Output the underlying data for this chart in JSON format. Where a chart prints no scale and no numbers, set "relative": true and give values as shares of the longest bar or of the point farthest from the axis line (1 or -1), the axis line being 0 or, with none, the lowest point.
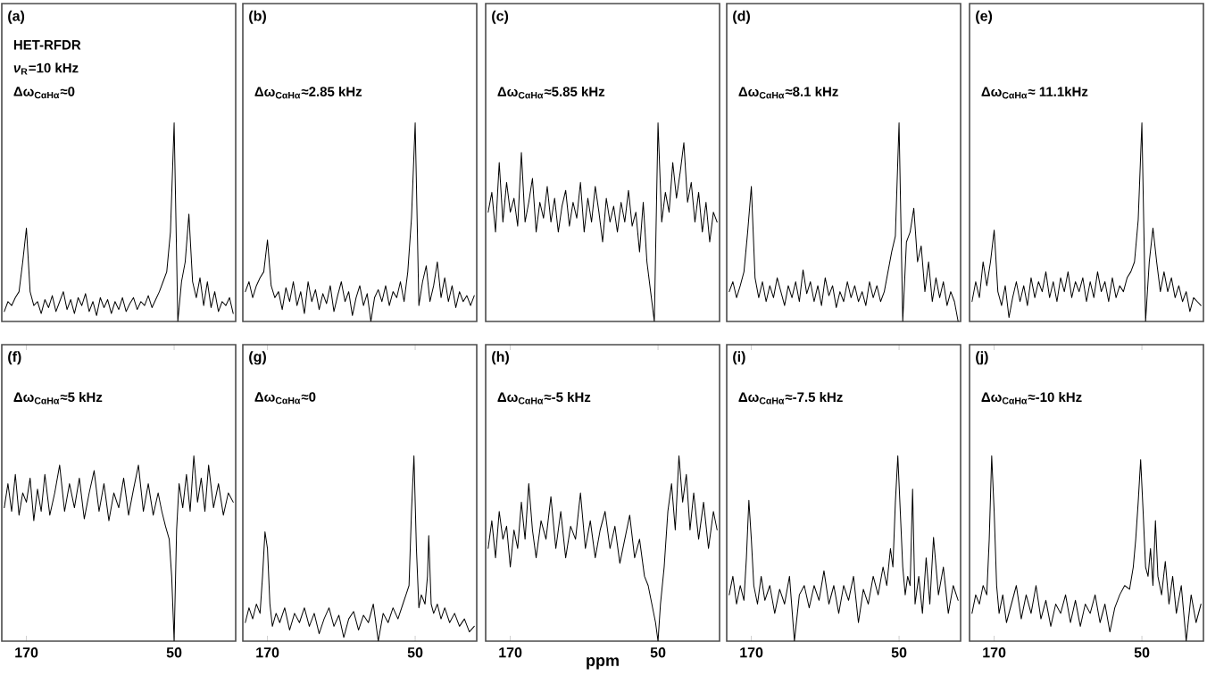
{
  "chart_data": [
    {
      "type": "line",
      "title": "(a)",
      "annotations": [
        "HET-RFDR",
        "*ν*$_{R}$=10 kHz",
        "Δω$_{CαHα}$≈0"
      ],
      "tick_labels": false,
      "relative": true,
      "color": "#000000",
      "categories": [
        null,
        null,
        null,
        null,
        null,
        null,
        null,
        null,
        null,
        null,
        null,
        null,
        null,
        null,
        null,
        null,
        null,
        null,
        null,
        null,
        null,
        null,
        null,
        null,
        null,
        null,
        null,
        null,
        null,
        null,
        null,
        null,
        null,
        null,
        null,
        null,
        null,
        null,
        null,
        null,
        null,
        null,
        null,
        null,
        null,
        null,
        null,
        null,
        null,
        null,
        null,
        null,
        null,
        null,
        null,
        null,
        null,
        null,
        null,
        null,
        null,
        null,
        null
      ],
      "values": [
        0.05,
        0.1,
        0.08,
        0.12,
        0.15,
        0.3,
        0.47,
        0.15,
        0.08,
        0.1,
        0.04,
        0.11,
        0.07,
        0.13,
        0.05,
        0.1,
        0.15,
        0.06,
        0.11,
        0.04,
        0.12,
        0.08,
        0.14,
        0.05,
        0.1,
        0.03,
        0.12,
        0.07,
        0.11,
        0.04,
        0.1,
        0.06,
        0.12,
        0.05,
        0.09,
        0.12,
        0.06,
        0.1,
        0.08,
        0.13,
        0.07,
        0.11,
        0.15,
        0.2,
        0.25,
        0.45,
        1,
        0,
        0.2,
        0.3,
        0.54,
        0.2,
        0.12,
        0.22,
        0.08,
        0.2,
        0.07,
        0.15,
        0.05,
        0.1,
        0.08,
        0.12,
        0.04
      ]
    },
    {
      "type": "line",
      "title": "(b)",
      "annotations": [
        "Δω$_{CαHα}$≈2.85 kHz"
      ],
      "tick_labels": false,
      "relative": true,
      "color": "#000000",
      "categories": [
        null,
        null,
        null,
        null,
        null,
        null,
        null,
        null,
        null,
        null,
        null,
        null,
        null,
        null,
        null,
        null,
        null,
        null,
        null,
        null,
        null,
        null,
        null,
        null,
        null,
        null,
        null,
        null,
        null,
        null,
        null,
        null,
        null,
        null,
        null,
        null,
        null,
        null,
        null,
        null,
        null,
        null,
        null,
        null,
        null,
        null,
        null,
        null,
        null,
        null,
        null,
        null,
        null,
        null,
        null,
        null,
        null,
        null,
        null,
        null,
        null,
        null,
        null
      ],
      "values": [
        0.15,
        0.2,
        0.12,
        0.18,
        0.22,
        0.25,
        0.41,
        0.18,
        0.12,
        0.15,
        0.06,
        0.17,
        0.1,
        0.2,
        0.08,
        0.15,
        0.04,
        0.2,
        0.1,
        0.16,
        0.06,
        0.14,
        0.09,
        0.18,
        0.05,
        0.13,
        0.2,
        0.1,
        0.15,
        0.03,
        0.12,
        0.18,
        0.08,
        0.14,
        0,
        0.12,
        0.16,
        0.1,
        0.18,
        0.08,
        0.15,
        0.12,
        0.2,
        0.1,
        0.25,
        0.52,
        1,
        0.08,
        0.2,
        0.28,
        0.1,
        0.18,
        0.3,
        0.12,
        0.22,
        0.1,
        0.18,
        0.07,
        0.15,
        0.1,
        0.13,
        0.08,
        0.13
      ]
    },
    {
      "type": "line",
      "title": "(c)",
      "annotations": [
        "Δω$_{CαHα}$≈5.85 kHz"
      ],
      "tick_labels": false,
      "relative": true,
      "color": "#000000",
      "categories": [
        null,
        null,
        null,
        null,
        null,
        null,
        null,
        null,
        null,
        null,
        null,
        null,
        null,
        null,
        null,
        null,
        null,
        null,
        null,
        null,
        null,
        null,
        null,
        null,
        null,
        null,
        null,
        null,
        null,
        null,
        null,
        null,
        null,
        null,
        null,
        null,
        null,
        null,
        null,
        null,
        null,
        null,
        null,
        null,
        null,
        null,
        null,
        null,
        null,
        null,
        null,
        null,
        null,
        null,
        null,
        null,
        null,
        null,
        null,
        null,
        null,
        null,
        null
      ],
      "values": [
        0.55,
        0.65,
        0.45,
        0.8,
        0.5,
        0.7,
        0.55,
        0.62,
        0.48,
        0.85,
        0.5,
        0.6,
        0.72,
        0.45,
        0.6,
        0.52,
        0.68,
        0.5,
        0.62,
        0.45,
        0.58,
        0.66,
        0.48,
        0.6,
        0.52,
        0.7,
        0.45,
        0.62,
        0.5,
        0.68,
        0.55,
        0.4,
        0.62,
        0.5,
        0.58,
        0.45,
        0.6,
        0.5,
        0.66,
        0.48,
        0.55,
        0.35,
        0.6,
        0.3,
        0.15,
        0,
        1,
        0.5,
        0.65,
        0.55,
        0.8,
        0.62,
        0.75,
        0.9,
        0.6,
        0.7,
        0.5,
        0.65,
        0.45,
        0.6,
        0.4,
        0.55,
        0.5
      ]
    },
    {
      "type": "line",
      "title": "(d)",
      "annotations": [
        "Δω$_{CαHα}$≈8.1 kHz"
      ],
      "tick_labels": false,
      "relative": true,
      "color": "#000000",
      "categories": [
        null,
        null,
        null,
        null,
        null,
        null,
        null,
        null,
        null,
        null,
        null,
        null,
        null,
        null,
        null,
        null,
        null,
        null,
        null,
        null,
        null,
        null,
        null,
        null,
        null,
        null,
        null,
        null,
        null,
        null,
        null,
        null,
        null,
        null,
        null,
        null,
        null,
        null,
        null,
        null,
        null,
        null,
        null,
        null,
        null,
        null,
        null,
        null,
        null,
        null,
        null,
        null,
        null,
        null,
        null,
        null,
        null,
        null,
        null,
        null,
        null,
        null,
        null
      ],
      "values": [
        0.15,
        0.2,
        0.12,
        0.18,
        0.25,
        0.45,
        0.68,
        0.22,
        0.12,
        0.2,
        0.1,
        0.18,
        0.12,
        0.22,
        0.15,
        0.08,
        0.18,
        0.12,
        0.2,
        0.1,
        0.26,
        0.14,
        0.2,
        0.1,
        0.18,
        0.08,
        0.22,
        0.13,
        0.18,
        0.07,
        0.15,
        0.1,
        0.2,
        0.12,
        0.18,
        0.1,
        0.15,
        0.08,
        0.2,
        0.12,
        0.18,
        0.1,
        0.15,
        0.25,
        0.35,
        0.43,
        1,
        0,
        0.4,
        0.45,
        0.57,
        0.3,
        0.38,
        0.15,
        0.3,
        0.1,
        0.22,
        0.12,
        0.2,
        0.08,
        0.15,
        0.1,
        0
      ]
    },
    {
      "type": "line",
      "title": "(e)",
      "annotations": [
        "Δω$_{CαHα}$≈ 11.1kHz"
      ],
      "tick_labels": false,
      "relative": true,
      "color": "#000000",
      "categories": [
        null,
        null,
        null,
        null,
        null,
        null,
        null,
        null,
        null,
        null,
        null,
        null,
        null,
        null,
        null,
        null,
        null,
        null,
        null,
        null,
        null,
        null,
        null,
        null,
        null,
        null,
        null,
        null,
        null,
        null,
        null,
        null,
        null,
        null,
        null,
        null,
        null,
        null,
        null,
        null,
        null,
        null,
        null,
        null,
        null,
        null,
        null,
        null,
        null,
        null,
        null,
        null,
        null,
        null,
        null,
        null,
        null,
        null,
        null,
        null,
        null,
        null,
        null
      ],
      "values": [
        0.1,
        0.2,
        0.12,
        0.3,
        0.18,
        0.3,
        0.46,
        0.15,
        0.08,
        0.18,
        0.02,
        0.12,
        0.2,
        0.1,
        0.18,
        0.08,
        0.22,
        0.12,
        0.2,
        0.15,
        0.25,
        0.12,
        0.2,
        0.1,
        0.22,
        0.15,
        0.25,
        0.12,
        0.2,
        0.15,
        0.22,
        0.1,
        0.2,
        0.12,
        0.25,
        0.15,
        0.2,
        0.1,
        0.22,
        0.12,
        0.18,
        0.15,
        0.22,
        0.25,
        0.3,
        0.51,
        1,
        0,
        0.3,
        0.47,
        0.3,
        0.15,
        0.25,
        0.15,
        0.22,
        0.12,
        0.18,
        0.1,
        0.15,
        0.05,
        0.12,
        0.1,
        0.08
      ]
    },
    {
      "type": "line",
      "title": "(f)",
      "annotations": [
        "Δω$_{CαHα}$≈5 kHz"
      ],
      "xlim": [
        190,
        0
      ],
      "xticks": [
        170,
        50
      ],
      "tick_labels": "x",
      "relative": true,
      "color": "#000000",
      "x": [
        188,
        185,
        182,
        179,
        176,
        173,
        170,
        167,
        164,
        161,
        158,
        155,
        151,
        147,
        143,
        139,
        135,
        131,
        127,
        123,
        119,
        115,
        111,
        107,
        103,
        99,
        95,
        91,
        87,
        83,
        79,
        75,
        71,
        67,
        63,
        60,
        57,
        54,
        52,
        50,
        48,
        46,
        43,
        40,
        37,
        34,
        31,
        28,
        25,
        22,
        18,
        14,
        10,
        6,
        2
      ],
      "values": [
        0.72,
        0.85,
        0.7,
        0.9,
        0.68,
        0.8,
        0.75,
        0.88,
        0.65,
        0.82,
        0.7,
        0.9,
        0.68,
        0.8,
        0.95,
        0.7,
        0.85,
        0.72,
        0.88,
        0.66,
        0.8,
        0.92,
        0.7,
        0.85,
        0.65,
        0.8,
        0.72,
        0.88,
        0.68,
        0.82,
        0.95,
        0.7,
        0.85,
        0.68,
        0.8,
        0.7,
        0.62,
        0.55,
        0.35,
        0,
        0.6,
        0.85,
        0.72,
        0.9,
        0.7,
        1,
        0.75,
        0.88,
        0.7,
        0.95,
        0.72,
        0.85,
        0.68,
        0.8,
        0.75
      ]
    },
    {
      "type": "line",
      "title": "(g)",
      "annotations": [
        "Δω$_{CαHα}$≈0"
      ],
      "xlim": [
        190,
        0
      ],
      "xticks": [
        170,
        50
      ],
      "tick_labels": "x",
      "relative": true,
      "color": "#000000",
      "x": [
        188,
        185,
        182,
        179,
        176,
        174,
        172,
        170,
        168,
        166,
        163,
        160,
        156,
        152,
        148,
        144,
        140,
        136,
        132,
        128,
        124,
        120,
        116,
        112,
        108,
        104,
        100,
        96,
        92,
        88,
        84,
        80,
        76,
        72,
        68,
        64,
        60,
        57,
        55,
        53,
        51,
        49,
        47,
        45,
        42,
        40,
        39,
        37,
        35,
        32,
        29,
        26,
        22,
        18,
        14,
        10,
        6,
        2
      ],
      "values": [
        0.1,
        0.18,
        0.12,
        0.2,
        0.15,
        0.35,
        0.59,
        0.5,
        0.2,
        0.08,
        0.15,
        0.1,
        0.18,
        0.06,
        0.15,
        0.1,
        0.18,
        0.08,
        0.15,
        0.04,
        0.12,
        0.18,
        0.08,
        0.14,
        0.02,
        0.12,
        0.16,
        0.06,
        0.14,
        0.1,
        0.2,
        0,
        0.15,
        0.1,
        0.18,
        0.12,
        0.2,
        0.26,
        0.3,
        0.7,
        1,
        0.5,
        0.18,
        0.25,
        0.2,
        0.35,
        0.57,
        0.2,
        0.15,
        0.2,
        0.12,
        0.18,
        0.1,
        0.15,
        0.08,
        0.12,
        0.05,
        0.08
      ]
    },
    {
      "type": "line",
      "title": "(h)",
      "annotations": [
        "Δω$_{CαHα}$≈-5 kHz"
      ],
      "xlabel": "ppm",
      "xlim": [
        190,
        0
      ],
      "xticks": [
        170,
        50
      ],
      "tick_labels": "x",
      "relative": true,
      "color": "#000000",
      "x": [
        188,
        185,
        182,
        179,
        176,
        173,
        170,
        167,
        164,
        161,
        158,
        155,
        152,
        149,
        145,
        141,
        137,
        133,
        129,
        125,
        121,
        117,
        113,
        109,
        105,
        101,
        97,
        93,
        89,
        85,
        81,
        77,
        73,
        69,
        65,
        61,
        58,
        55,
        52,
        50,
        48,
        45,
        42,
        39,
        36,
        33,
        30,
        27,
        24,
        21,
        17,
        13,
        9,
        5,
        2
      ],
      "values": [
        0.5,
        0.65,
        0.45,
        0.7,
        0.55,
        0.62,
        0.4,
        0.6,
        0.5,
        0.75,
        0.55,
        0.85,
        0.6,
        0.45,
        0.65,
        0.55,
        0.78,
        0.5,
        0.7,
        0.45,
        0.62,
        0.55,
        0.8,
        0.5,
        0.65,
        0.45,
        0.6,
        0.7,
        0.5,
        0.62,
        0.42,
        0.55,
        0.68,
        0.45,
        0.55,
        0.35,
        0.3,
        0.2,
        0.1,
        0,
        0.2,
        0.4,
        0.7,
        0.85,
        0.6,
        1,
        0.75,
        0.9,
        0.6,
        0.8,
        0.55,
        0.75,
        0.5,
        0.7,
        0.6
      ]
    },
    {
      "type": "line",
      "title": "(i)",
      "annotations": [
        "Δω$_{CαHα}$≈-7.5 kHz"
      ],
      "xlim": [
        190,
        0
      ],
      "xticks": [
        170,
        50
      ],
      "tick_labels": "x",
      "relative": true,
      "color": "#000000",
      "x": [
        188,
        185,
        182,
        179,
        176,
        174,
        172,
        170,
        168,
        165,
        162,
        159,
        155,
        151,
        147,
        143,
        139,
        135,
        131,
        127,
        123,
        119,
        115,
        111,
        107,
        103,
        99,
        95,
        91,
        87,
        83,
        79,
        75,
        71,
        67,
        63,
        60,
        57,
        55,
        53,
        51,
        49,
        47,
        45,
        43,
        41,
        39,
        37,
        34,
        31,
        28,
        25,
        22,
        18,
        14,
        10,
        6,
        2
      ],
      "values": [
        0.25,
        0.35,
        0.2,
        0.3,
        0.22,
        0.45,
        0.76,
        0.55,
        0.3,
        0.2,
        0.35,
        0.22,
        0.3,
        0.15,
        0.28,
        0.2,
        0.35,
        0,
        0.25,
        0.3,
        0.18,
        0.3,
        0.22,
        0.38,
        0.2,
        0.3,
        0.15,
        0.3,
        0.22,
        0.35,
        0.1,
        0.28,
        0.2,
        0.35,
        0.25,
        0.4,
        0.3,
        0.5,
        0.4,
        0.75,
        1,
        0.7,
        0.4,
        0.25,
        0.35,
        0.3,
        0.82,
        0.2,
        0.35,
        0.15,
        0.45,
        0.2,
        0.56,
        0.25,
        0.4,
        0.15,
        0.3,
        0.22
      ]
    },
    {
      "type": "line",
      "title": "(j)",
      "annotations": [
        "Δω$_{CαHα}$≈-10 kHz"
      ],
      "xlim": [
        190,
        0
      ],
      "xticks": [
        170,
        50
      ],
      "tick_labels": "x",
      "relative": true,
      "color": "#000000",
      "x": [
        188,
        185,
        182,
        179,
        176,
        174,
        172,
        170,
        168,
        166,
        163,
        160,
        156,
        152,
        148,
        144,
        140,
        136,
        132,
        128,
        124,
        120,
        116,
        112,
        108,
        104,
        100,
        96,
        92,
        88,
        84,
        80,
        76,
        72,
        68,
        64,
        60,
        57,
        55,
        53,
        51,
        49,
        47,
        45,
        43,
        41,
        39,
        37,
        34,
        31,
        28,
        25,
        22,
        18,
        14,
        10,
        6,
        2
      ],
      "values": [
        0.15,
        0.25,
        0.2,
        0.3,
        0.25,
        0.55,
        1,
        0.7,
        0.3,
        0.15,
        0.25,
        0.1,
        0.2,
        0.3,
        0.12,
        0.25,
        0.15,
        0.3,
        0.12,
        0.22,
        0.08,
        0.2,
        0.15,
        0.25,
        0.1,
        0.22,
        0.08,
        0.2,
        0.15,
        0.25,
        0.1,
        0.2,
        0.05,
        0.18,
        0.25,
        0.3,
        0.28,
        0.4,
        0.55,
        0.75,
        0.98,
        0.7,
        0.4,
        0.35,
        0.5,
        0.3,
        0.65,
        0.35,
        0.25,
        0.43,
        0.2,
        0.35,
        0.15,
        0.3,
        0,
        0.25,
        0.1,
        0.2
      ]
    }
  ]
}
